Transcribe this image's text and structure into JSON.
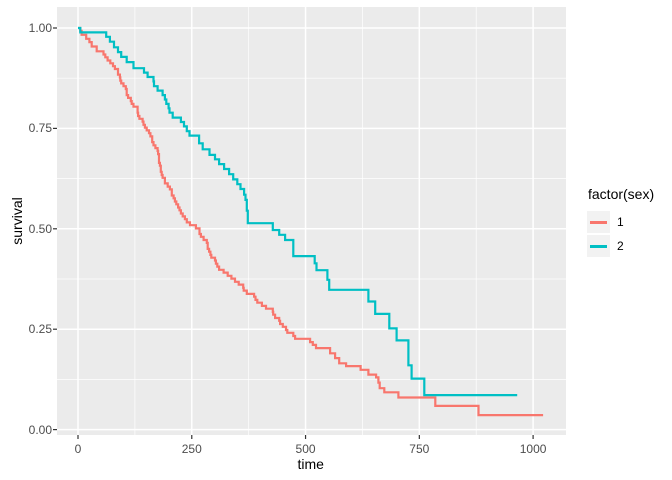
{
  "chart_data": {
    "type": "line",
    "subtype": "kaplan-meier-step",
    "title": "",
    "xlabel": "time",
    "ylabel": "survival",
    "xlim": [
      -46,
      1072
    ],
    "ylim": [
      -0.013,
      1.052
    ],
    "x_major_ticks": [
      0,
      250,
      500,
      750,
      1000
    ],
    "x_minor_ticks": [
      125,
      375,
      625,
      875
    ],
    "x_tick_labels": [
      "0",
      "250",
      "500",
      "750",
      "1000"
    ],
    "y_major_ticks": [
      0,
      0.25,
      0.5,
      0.75,
      1.0
    ],
    "y_minor_ticks": [
      0.125,
      0.375,
      0.625,
      0.875
    ],
    "y_tick_labels": [
      "0.00",
      "0.25",
      "0.50",
      "0.75",
      "1.00"
    ],
    "grid": true,
    "legend_position": "right",
    "legend_title": "factor(sex)",
    "series": [
      {
        "name": "1",
        "color": "#F8766D",
        "end_time": 1022,
        "points": [
          [
            0,
            1.0
          ],
          [
            5,
            0.993
          ],
          [
            8,
            0.983
          ],
          [
            18,
            0.973
          ],
          [
            25,
            0.965
          ],
          [
            30,
            0.954
          ],
          [
            41,
            0.942
          ],
          [
            56,
            0.934
          ],
          [
            60,
            0.927
          ],
          [
            65,
            0.919
          ],
          [
            71,
            0.912
          ],
          [
            77,
            0.905
          ],
          [
            81,
            0.898
          ],
          [
            88,
            0.884
          ],
          [
            92,
            0.877
          ],
          [
            93,
            0.869
          ],
          [
            95,
            0.862
          ],
          [
            100,
            0.855
          ],
          [
            105,
            0.848
          ],
          [
            107,
            0.833
          ],
          [
            110,
            0.826
          ],
          [
            116,
            0.818
          ],
          [
            118,
            0.811
          ],
          [
            122,
            0.804
          ],
          [
            131,
            0.789
          ],
          [
            132,
            0.781
          ],
          [
            135,
            0.774
          ],
          [
            142,
            0.767
          ],
          [
            144,
            0.759
          ],
          [
            147,
            0.752
          ],
          [
            151,
            0.745
          ],
          [
            156,
            0.738
          ],
          [
            159,
            0.73
          ],
          [
            163,
            0.716
          ],
          [
            166,
            0.708
          ],
          [
            170,
            0.701
          ],
          [
            175,
            0.694
          ],
          [
            176,
            0.686
          ],
          [
            178,
            0.664
          ],
          [
            180,
            0.657
          ],
          [
            182,
            0.642
          ],
          [
            184,
            0.634
          ],
          [
            186,
            0.627
          ],
          [
            191,
            0.613
          ],
          [
            197,
            0.605
          ],
          [
            202,
            0.598
          ],
          [
            206,
            0.583
          ],
          [
            210,
            0.576
          ],
          [
            213,
            0.568
          ],
          [
            216,
            0.561
          ],
          [
            220,
            0.553
          ],
          [
            223,
            0.546
          ],
          [
            226,
            0.538
          ],
          [
            230,
            0.531
          ],
          [
            235,
            0.524
          ],
          [
            239,
            0.516
          ],
          [
            246,
            0.509
          ],
          [
            259,
            0.501
          ],
          [
            267,
            0.487
          ],
          [
            270,
            0.48
          ],
          [
            276,
            0.472
          ],
          [
            283,
            0.465
          ],
          [
            285,
            0.45
          ],
          [
            288,
            0.443
          ],
          [
            291,
            0.435
          ],
          [
            293,
            0.428
          ],
          [
            301,
            0.421
          ],
          [
            303,
            0.413
          ],
          [
            306,
            0.406
          ],
          [
            310,
            0.398
          ],
          [
            320,
            0.391
          ],
          [
            329,
            0.383
          ],
          [
            337,
            0.376
          ],
          [
            345,
            0.368
          ],
          [
            353,
            0.361
          ],
          [
            363,
            0.353
          ],
          [
            364,
            0.346
          ],
          [
            371,
            0.338
          ],
          [
            387,
            0.331
          ],
          [
            390,
            0.323
          ],
          [
            394,
            0.316
          ],
          [
            404,
            0.308
          ],
          [
            413,
            0.301
          ],
          [
            428,
            0.293
          ],
          [
            429,
            0.286
          ],
          [
            433,
            0.278
          ],
          [
            442,
            0.271
          ],
          [
            444,
            0.263
          ],
          [
            450,
            0.256
          ],
          [
            457,
            0.248
          ],
          [
            460,
            0.241
          ],
          [
            473,
            0.233
          ],
          [
            477,
            0.226
          ],
          [
            510,
            0.218
          ],
          [
            516,
            0.211
          ],
          [
            523,
            0.203
          ],
          [
            554,
            0.19
          ],
          [
            565,
            0.178
          ],
          [
            574,
            0.165
          ],
          [
            589,
            0.158
          ],
          [
            621,
            0.149
          ],
          [
            638,
            0.137
          ],
          [
            655,
            0.13
          ],
          [
            660,
            0.117
          ],
          [
            663,
            0.103
          ],
          [
            673,
            0.093
          ],
          [
            704,
            0.08
          ],
          [
            785,
            0.059
          ],
          [
            880,
            0.036
          ]
        ]
      },
      {
        "name": "2",
        "color": "#00BFC4",
        "end_time": 965,
        "points": [
          [
            0,
            1.0
          ],
          [
            5,
            0.989
          ],
          [
            62,
            0.978
          ],
          [
            70,
            0.966
          ],
          [
            79,
            0.952
          ],
          [
            88,
            0.94
          ],
          [
            95,
            0.928
          ],
          [
            107,
            0.915
          ],
          [
            122,
            0.9
          ],
          [
            145,
            0.889
          ],
          [
            153,
            0.878
          ],
          [
            166,
            0.867
          ],
          [
            167,
            0.855
          ],
          [
            175,
            0.844
          ],
          [
            186,
            0.833
          ],
          [
            191,
            0.822
          ],
          [
            194,
            0.811
          ],
          [
            199,
            0.8
          ],
          [
            201,
            0.789
          ],
          [
            208,
            0.777
          ],
          [
            226,
            0.766
          ],
          [
            233,
            0.755
          ],
          [
            239,
            0.743
          ],
          [
            245,
            0.732
          ],
          [
            266,
            0.713
          ],
          [
            274,
            0.698
          ],
          [
            289,
            0.684
          ],
          [
            301,
            0.673
          ],
          [
            310,
            0.661
          ],
          [
            321,
            0.649
          ],
          [
            332,
            0.636
          ],
          [
            341,
            0.623
          ],
          [
            350,
            0.611
          ],
          [
            357,
            0.599
          ],
          [
            365,
            0.585
          ],
          [
            368,
            0.572
          ],
          [
            371,
            0.545
          ],
          [
            373,
            0.514
          ],
          [
            428,
            0.497
          ],
          [
            442,
            0.485
          ],
          [
            455,
            0.472
          ],
          [
            473,
            0.432
          ],
          [
            520,
            0.414
          ],
          [
            524,
            0.397
          ],
          [
            548,
            0.373
          ],
          [
            552,
            0.348
          ],
          [
            638,
            0.319
          ],
          [
            653,
            0.288
          ],
          [
            684,
            0.252
          ],
          [
            700,
            0.222
          ],
          [
            726,
            0.16
          ],
          [
            733,
            0.127
          ],
          [
            761,
            0.086
          ]
        ]
      }
    ],
    "colors": {
      "panel_background": "#EBEBEB",
      "grid": "#FFFFFF",
      "tick_text": "#4D4D4D",
      "tick_mark": "#333333",
      "legend_key_background": "#F2F2F2",
      "series_1": "#F8766D",
      "series_2": "#00BFC4"
    }
  },
  "legend": {
    "title": "factor(sex)",
    "items": [
      {
        "label": "1",
        "color": "#F8766D"
      },
      {
        "label": "2",
        "color": "#00BFC4"
      }
    ]
  },
  "axes": {
    "x_title": "time",
    "y_title": "survival"
  }
}
